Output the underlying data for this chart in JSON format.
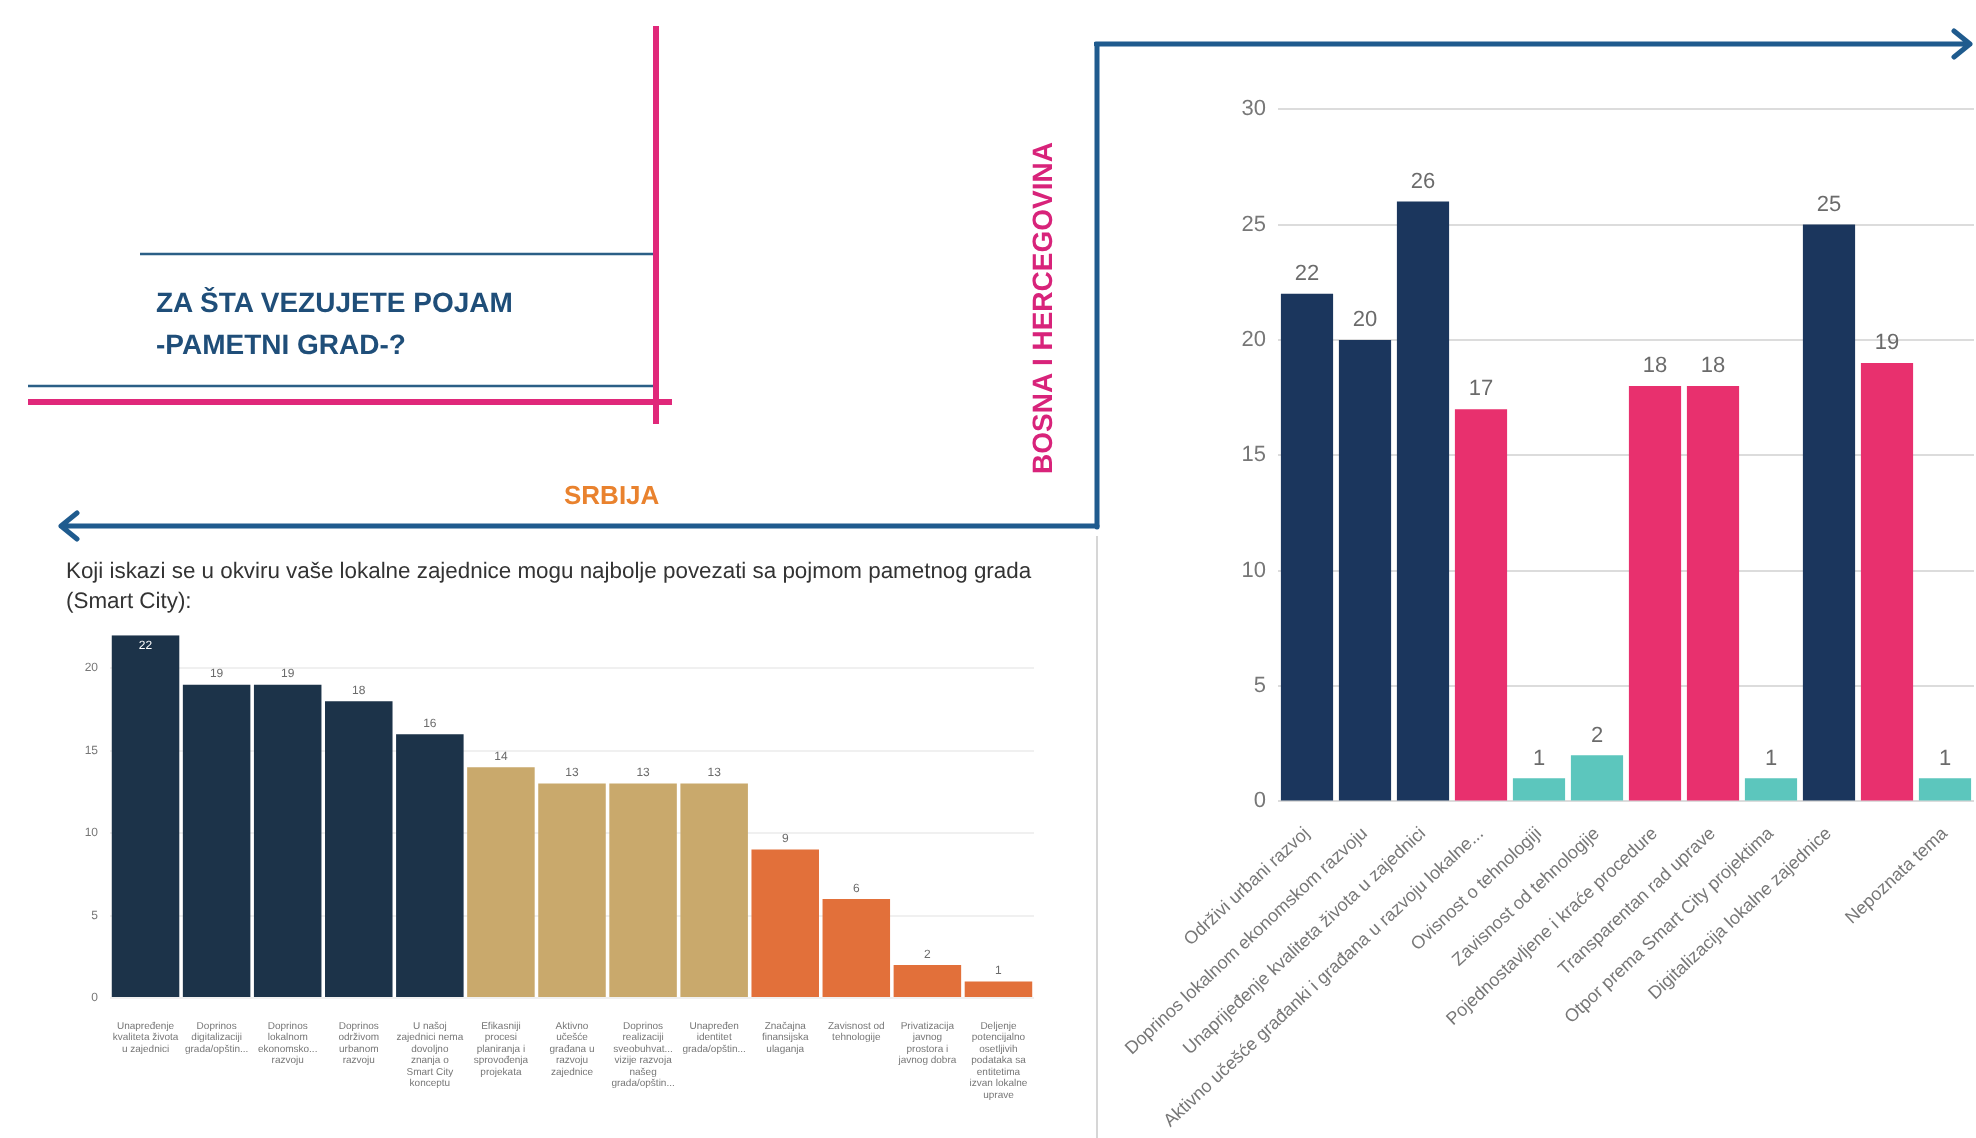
{
  "chart_data": [
    {
      "type": "other",
      "title": "ZA ŠTA VEZUJETE POJAM -PAMETNI GRAD-?"
    },
    {
      "type": "bar",
      "title": "BOSNA I HERCEGOVINA",
      "categories": [
        "Održivi urbani razvoj",
        "Doprinos lokalnom ekonomskom razvoju",
        "Unaprijeđenje kvaliteta života u zajednici",
        "Aktivno učešće građanki i građana u razvoju lokalne...",
        "Ovisnost o tehnologiji",
        "Zavisnost od tehnologije",
        "Pojednostavljene i kraće procedure",
        "Transparentan rad uprave",
        "Otpor prema Smart City projektima",
        "Digitalizacija lokalne zajednice",
        null,
        "Nepoznata tema"
      ],
      "values": [
        22,
        20,
        26,
        17,
        1,
        2,
        18,
        18,
        1,
        25,
        19,
        1
      ],
      "colors": [
        "#1b365d",
        "#1b365d",
        "#1b365d",
        "#e8306e",
        "#5cc6bd",
        "#5cc6bd",
        "#e8306e",
        "#e8306e",
        "#5cc6bd",
        "#1b365d",
        "#e8306e",
        "#5cc6bd"
      ],
      "ylim": [
        0,
        30
      ],
      "yticks": [
        0,
        5,
        10,
        15,
        20,
        25,
        30
      ],
      "grid": "y",
      "data_labels": true
    },
    {
      "type": "bar",
      "title": "SRBIJA",
      "subtitle": "Koji iskazi se u okviru vaše lokalne zajednice mogu najbolje povezati sa pojmom pametnog grada (Smart City):",
      "categories": [
        "Unapređenje kvaliteta života u zajednici",
        "Doprinos digitalizaciji grada/opštin...",
        "Doprinos lokalnom ekonomsko... razvoju",
        "Doprinos održivom urbanom razvoju",
        "U našoj zajednici nema dovoljno znanja o Smart City konceptu",
        "Efikasniji procesi planiranja i sprovođenja projekata",
        "Aktivno učešće građana u razvoju zajednice",
        "Doprinos realizaciji sveobuhvat... vizije razvoja našeg grada/opštin...",
        "Unapređen identitet grada/opštin...",
        "Značajna finansijska ulaganja",
        "Zavisnost od tehnologije",
        "Privatizacija javnog prostora i javnog dobra",
        "Deljenje potencijalno osetljivih podataka sa entitetima izvan lokalne uprave"
      ],
      "values": [
        22,
        19,
        19,
        18,
        16,
        14,
        13,
        13,
        13,
        9,
        6,
        2,
        1
      ],
      "colors": [
        "#1c3349",
        "#1c3349",
        "#1c3349",
        "#1c3349",
        "#1c3349",
        "#c9a96c",
        "#c9a96c",
        "#c9a96c",
        "#c9a96c",
        "#e2703a",
        "#e2703a",
        "#e2703a",
        "#e2703a"
      ],
      "ylim": [
        0,
        22
      ],
      "yticks": [
        0,
        5,
        10,
        15,
        20
      ],
      "grid": "y",
      "data_labels": true
    }
  ]
}
